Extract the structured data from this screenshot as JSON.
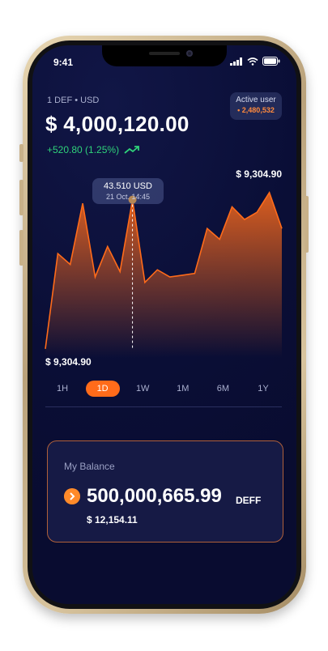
{
  "status": {
    "time": "9:41"
  },
  "market": {
    "pair": "1 DEF • USD",
    "price": "$ 4,000,120.00",
    "change": "+520.80 (1.25%)",
    "change_color": "#2fd27a"
  },
  "active_user": {
    "label": "Active user",
    "count": "• 2,480,532"
  },
  "chart": {
    "tooltip_value": "43.510 USD",
    "tooltip_date": "21 Oct. 14:45",
    "high_label": "$ 9,304.90",
    "low_label": "$ 9,304.90",
    "accent": "#ff6b1a"
  },
  "chart_data": {
    "type": "area",
    "values": [
      5,
      58,
      52,
      86,
      45,
      62,
      48,
      88,
      42,
      49,
      45,
      46,
      47,
      72,
      66,
      84,
      77,
      81,
      92,
      72
    ]
  },
  "time_ranges": [
    {
      "label": "1H",
      "active": false
    },
    {
      "label": "1D",
      "active": true
    },
    {
      "label": "1W",
      "active": false
    },
    {
      "label": "1M",
      "active": false
    },
    {
      "label": "6M",
      "active": false
    },
    {
      "label": "1Y",
      "active": false
    }
  ],
  "balance": {
    "title": "My Balance",
    "amount": "500,000,665.99",
    "unit": "DEFF",
    "usd": "$ 12,154.11",
    "icon": "chevron-right-icon"
  }
}
